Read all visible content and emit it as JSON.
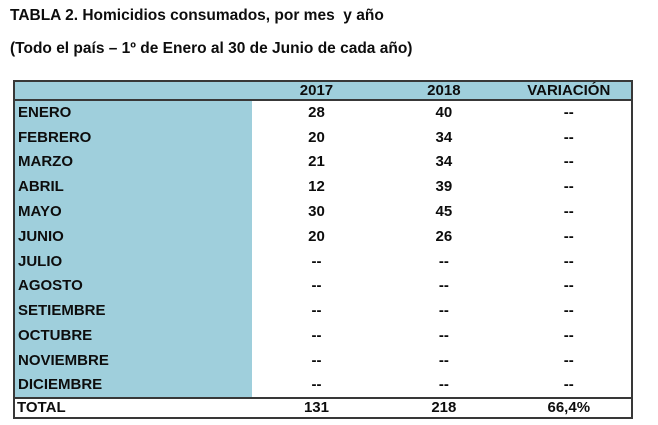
{
  "title": "TABLA 2. Homicidios consumados, por mes  y año",
  "subtitle": "(Todo el país – 1º de Enero al 30 de Junio de cada año)",
  "colors": {
    "header_bg": "#9FCFDC",
    "border_dark": "#383838",
    "text": "#0d0d0d"
  },
  "table": {
    "columns": [
      "",
      "2017",
      "2018",
      "VARIACIÓN"
    ],
    "rows": [
      [
        "ENERO",
        "28",
        "40",
        "--"
      ],
      [
        "FEBRERO",
        "20",
        "34",
        "--"
      ],
      [
        "MARZO",
        "21",
        "34",
        "--"
      ],
      [
        "ABRIL",
        "12",
        "39",
        "--"
      ],
      [
        "MAYO",
        "30",
        "45",
        "--"
      ],
      [
        "JUNIO",
        "20",
        "26",
        "--"
      ],
      [
        "JULIO",
        "--",
        "--",
        "--"
      ],
      [
        "AGOSTO",
        "--",
        "--",
        "--"
      ],
      [
        "SETIEMBRE",
        "--",
        "--",
        "--"
      ],
      [
        "OCTUBRE",
        "--",
        "--",
        "--"
      ],
      [
        "NOVIEMBRE",
        "--",
        "--",
        "--"
      ],
      [
        "DICIEMBRE",
        "--",
        "--",
        "--"
      ]
    ],
    "total": [
      "TOTAL",
      "131",
      "218",
      "66,4%"
    ]
  }
}
